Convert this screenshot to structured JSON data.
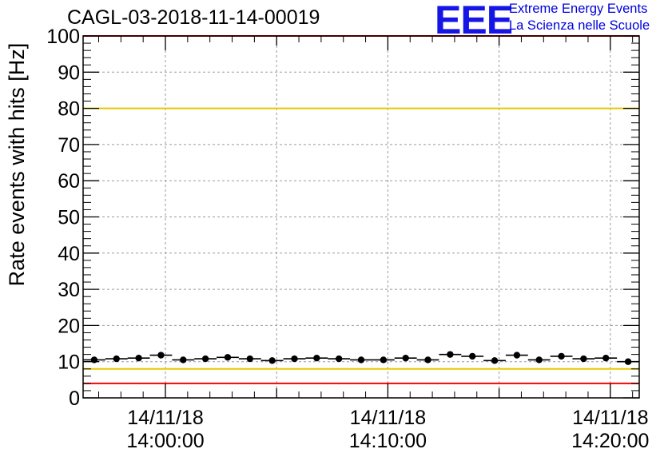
{
  "title": "CAGL-03-2018-11-14-00019",
  "logo": {
    "mark": "EEE",
    "line1": "Extreme Energy Events",
    "line2": "La Scienza nelle Scuole"
  },
  "chart_data": {
    "type": "scatter",
    "title": "CAGL-03-2018-11-14-00019",
    "ylabel": "Rate events with hits [Hz]",
    "xlabel": "",
    "ylim": [
      0,
      100
    ],
    "yticks": [
      0,
      10,
      20,
      30,
      40,
      50,
      60,
      70,
      80,
      90,
      100
    ],
    "xlim_minutes": [
      -3.7,
      21.3
    ],
    "xticks": [
      {
        "minute": 0,
        "date": "14/11/18",
        "time": "14:00:00"
      },
      {
        "minute": 10,
        "date": "14/11/18",
        "time": "14:10:00"
      },
      {
        "minute": 20,
        "date": "14/11/18",
        "time": "14:20:00"
      }
    ],
    "grid": true,
    "bin_width_minutes": 1,
    "series": [
      {
        "x_minutes": [
          -3.2,
          -2.2,
          -1.2,
          -0.2,
          0.8,
          1.8,
          2.8,
          3.8,
          4.8,
          5.8,
          6.8,
          7.8,
          8.8,
          9.8,
          10.8,
          11.8,
          12.8,
          13.8,
          14.8,
          15.8,
          16.8,
          17.8,
          18.8,
          19.8,
          20.8
        ],
        "values": [
          10.5,
          10.8,
          11.0,
          11.8,
          10.5,
          10.8,
          11.2,
          10.8,
          10.3,
          10.8,
          11.0,
          10.8,
          10.5,
          10.5,
          11.0,
          10.5,
          12.0,
          11.5,
          10.3,
          11.8,
          10.5,
          11.5,
          10.8,
          11.0,
          10.0
        ],
        "errors": [
          0.4,
          0.4,
          0.4,
          0.4,
          0.4,
          0.4,
          0.4,
          0.4,
          0.4,
          0.4,
          0.4,
          0.4,
          0.4,
          0.4,
          0.4,
          0.4,
          0.4,
          0.4,
          0.4,
          0.4,
          0.4,
          0.4,
          0.4,
          0.4,
          0.4
        ]
      }
    ],
    "reference_lines": [
      {
        "value": 100,
        "color": "#ff0000"
      },
      {
        "value": 80,
        "color": "#e8c800"
      },
      {
        "value": 8,
        "color": "#e8c800"
      },
      {
        "value": 4,
        "color": "#ff0000"
      }
    ]
  }
}
